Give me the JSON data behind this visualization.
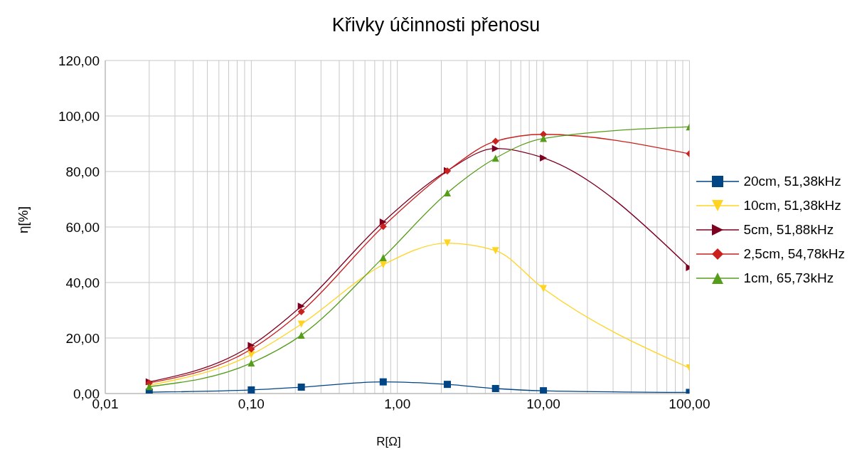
{
  "chart_data": {
    "type": "line",
    "title": "Křivky účinnosti přenosu",
    "xlabel": "R[Ω]",
    "ylabel": "η[%]",
    "x": [
      0.02,
      0.1,
      0.22,
      0.8,
      2.2,
      4.7,
      10,
      100
    ],
    "log": "x",
    "grid": true,
    "legend": "right",
    "xlim": [
      0.01,
      100
    ],
    "xticks": [
      {
        "value": 0.01,
        "label": "0,01"
      },
      {
        "value": 0.02,
        "label": null
      },
      {
        "value": 0.03,
        "label": null
      },
      {
        "value": 0.04,
        "label": null
      },
      {
        "value": 0.05,
        "label": null
      },
      {
        "value": 0.06,
        "label": null
      },
      {
        "value": 0.07,
        "label": null
      },
      {
        "value": 0.08,
        "label": null
      },
      {
        "value": 0.09,
        "label": null
      },
      {
        "value": 0.1,
        "label": "0,10"
      },
      {
        "value": 0.2,
        "label": null
      },
      {
        "value": 0.3,
        "label": null
      },
      {
        "value": 0.4,
        "label": null
      },
      {
        "value": 0.5,
        "label": null
      },
      {
        "value": 0.6,
        "label": null
      },
      {
        "value": 0.7,
        "label": null
      },
      {
        "value": 0.8,
        "label": null
      },
      {
        "value": 0.9,
        "label": null
      },
      {
        "value": 1,
        "label": "1,00"
      },
      {
        "value": 2,
        "label": null
      },
      {
        "value": 3,
        "label": null
      },
      {
        "value": 4,
        "label": null
      },
      {
        "value": 5,
        "label": null
      },
      {
        "value": 6,
        "label": null
      },
      {
        "value": 7,
        "label": null
      },
      {
        "value": 8,
        "label": null
      },
      {
        "value": 9,
        "label": null
      },
      {
        "value": 10,
        "label": "10,00"
      },
      {
        "value": 20,
        "label": null
      },
      {
        "value": 30,
        "label": null
      },
      {
        "value": 40,
        "label": null
      },
      {
        "value": 50,
        "label": null
      },
      {
        "value": 60,
        "label": null
      },
      {
        "value": 70,
        "label": null
      },
      {
        "value": 80,
        "label": null
      },
      {
        "value": 90,
        "label": null
      },
      {
        "value": 100,
        "label": "100,00"
      }
    ],
    "ylim": [
      0,
      120
    ],
    "yticks": [
      {
        "value": 0,
        "label": "0,00"
      },
      {
        "value": 20,
        "label": "20,00"
      },
      {
        "value": 40,
        "label": "40,00"
      },
      {
        "value": 60,
        "label": "60,00"
      },
      {
        "value": 80,
        "label": "80,00"
      },
      {
        "value": 100,
        "label": "100,00"
      },
      {
        "value": 120,
        "label": "120,00"
      }
    ],
    "series": [
      {
        "name": "20cm, 51,38kHz",
        "color": "#004586",
        "marker": "square",
        "values": [
          0.5,
          1.3,
          2.3,
          4.2,
          3.3,
          1.8,
          1.0,
          0.4
        ]
      },
      {
        "name": "10cm, 51,38kHz",
        "color": "#ffd320",
        "marker": "triangle-down",
        "values": [
          3.0,
          14,
          25,
          46.4,
          54.2,
          51.5,
          37.8,
          9.2
        ]
      },
      {
        "name": "5cm, 51,88kHz",
        "color": "#7e0021",
        "marker": "triangle-right",
        "values": [
          4.2,
          17.3,
          31.5,
          61.8,
          80.3,
          88.3,
          84.9,
          45.4
        ]
      },
      {
        "name": "2,5cm, 54,78kHz",
        "color": "#c9211e",
        "marker": "diamond",
        "values": [
          3.8,
          16,
          29.5,
          60.2,
          80.2,
          90.9,
          93.4,
          86.4
        ]
      },
      {
        "name": "1cm, 65,73kHz",
        "color": "#579d1c",
        "marker": "triangle",
        "values": [
          2.5,
          11,
          21,
          49,
          72.3,
          84.8,
          91.9,
          96.1
        ]
      }
    ]
  }
}
